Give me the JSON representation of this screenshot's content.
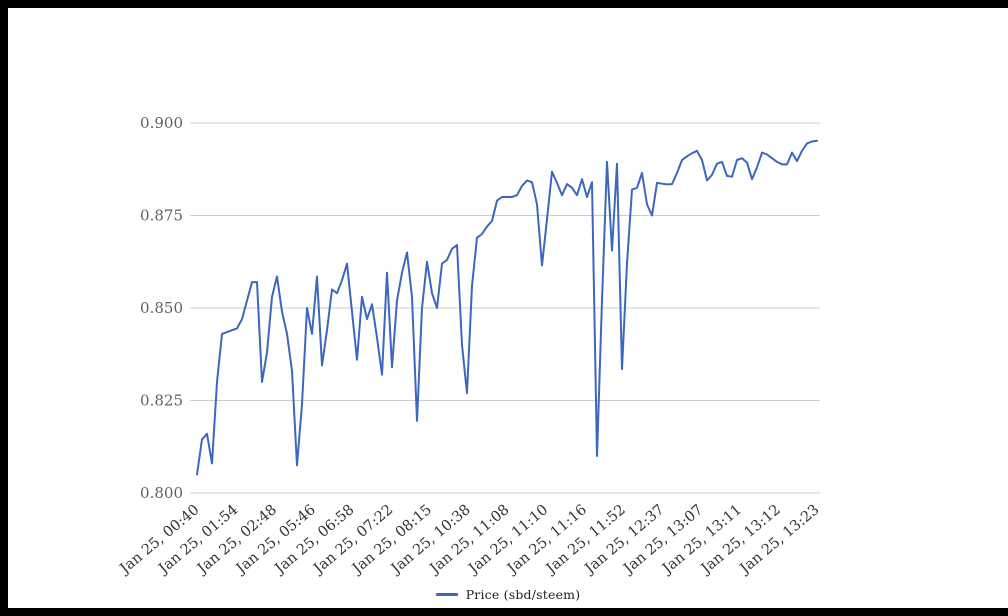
{
  "chart_data": {
    "type": "line",
    "title": "",
    "xlabel": "",
    "ylabel": "",
    "ylim": [
      0.8,
      0.9
    ],
    "y_ticks": [
      "0.800",
      "0.825",
      "0.850",
      "0.875",
      "0.900"
    ],
    "grid": "horizontal",
    "legend_position": "bottom",
    "x_ticks": [
      "Jan 25, 00:40",
      "Jan 25, 01:54",
      "Jan 25, 02:48",
      "Jan 25, 05:46",
      "Jan 25, 06:58",
      "Jan 25, 07:22",
      "Jan 25, 08:15",
      "Jan 25, 10:38",
      "Jan 25, 11:08",
      "Jan 25, 11:10",
      "Jan 25, 11:16",
      "Jan 25, 11:52",
      "Jan 25, 12:37",
      "Jan 25, 13:07",
      "Jan 25, 13:11",
      "Jan 25, 13:12",
      "Jan 25, 13:23"
    ],
    "series": [
      {
        "name": "Price (sbd/steem)",
        "color": "#3b68bd",
        "values": [
          0.805,
          0.8145,
          0.816,
          0.808,
          0.83,
          0.843,
          0.8435,
          0.844,
          0.8445,
          0.847,
          0.852,
          0.857,
          0.857,
          0.83,
          0.838,
          0.853,
          0.8585,
          0.849,
          0.843,
          0.833,
          0.8075,
          0.824,
          0.85,
          0.843,
          0.8585,
          0.8345,
          0.844,
          0.855,
          0.854,
          0.8575,
          0.862,
          0.849,
          0.836,
          0.853,
          0.847,
          0.851,
          0.842,
          0.832,
          0.8595,
          0.834,
          0.852,
          0.8595,
          0.865,
          0.853,
          0.8195,
          0.85,
          0.8625,
          0.854,
          0.85,
          0.862,
          0.863,
          0.866,
          0.867,
          0.84,
          0.827,
          0.856,
          0.869,
          0.87,
          0.872,
          0.8735,
          0.879,
          0.88,
          0.88,
          0.88,
          0.8805,
          0.883,
          0.8845,
          0.884,
          0.878,
          0.8615,
          0.874,
          0.8868,
          0.8838,
          0.8805,
          0.8835,
          0.8825,
          0.8805,
          0.8848,
          0.88,
          0.884,
          0.81,
          0.852,
          0.8895,
          0.8655,
          0.889,
          0.8335,
          0.862,
          0.882,
          0.8825,
          0.8865,
          0.878,
          0.875,
          0.8838,
          0.8836,
          0.8834,
          0.8835,
          0.8865,
          0.89,
          0.891,
          0.8918,
          0.8925,
          0.89,
          0.8845,
          0.886,
          0.889,
          0.8895,
          0.8857,
          0.8855,
          0.89,
          0.8905,
          0.8893,
          0.8848,
          0.888,
          0.892,
          0.8915,
          0.8905,
          0.8895,
          0.8888,
          0.8888,
          0.892,
          0.8897,
          0.8925,
          0.8945,
          0.895,
          0.8952
        ]
      }
    ]
  },
  "colors": {
    "line": "#3b68bd",
    "grid": "#cccccc",
    "y_label_text": "#616161",
    "x_label_text": "#333333",
    "chart_background": "#ffffff",
    "page_frame": "#000000"
  }
}
